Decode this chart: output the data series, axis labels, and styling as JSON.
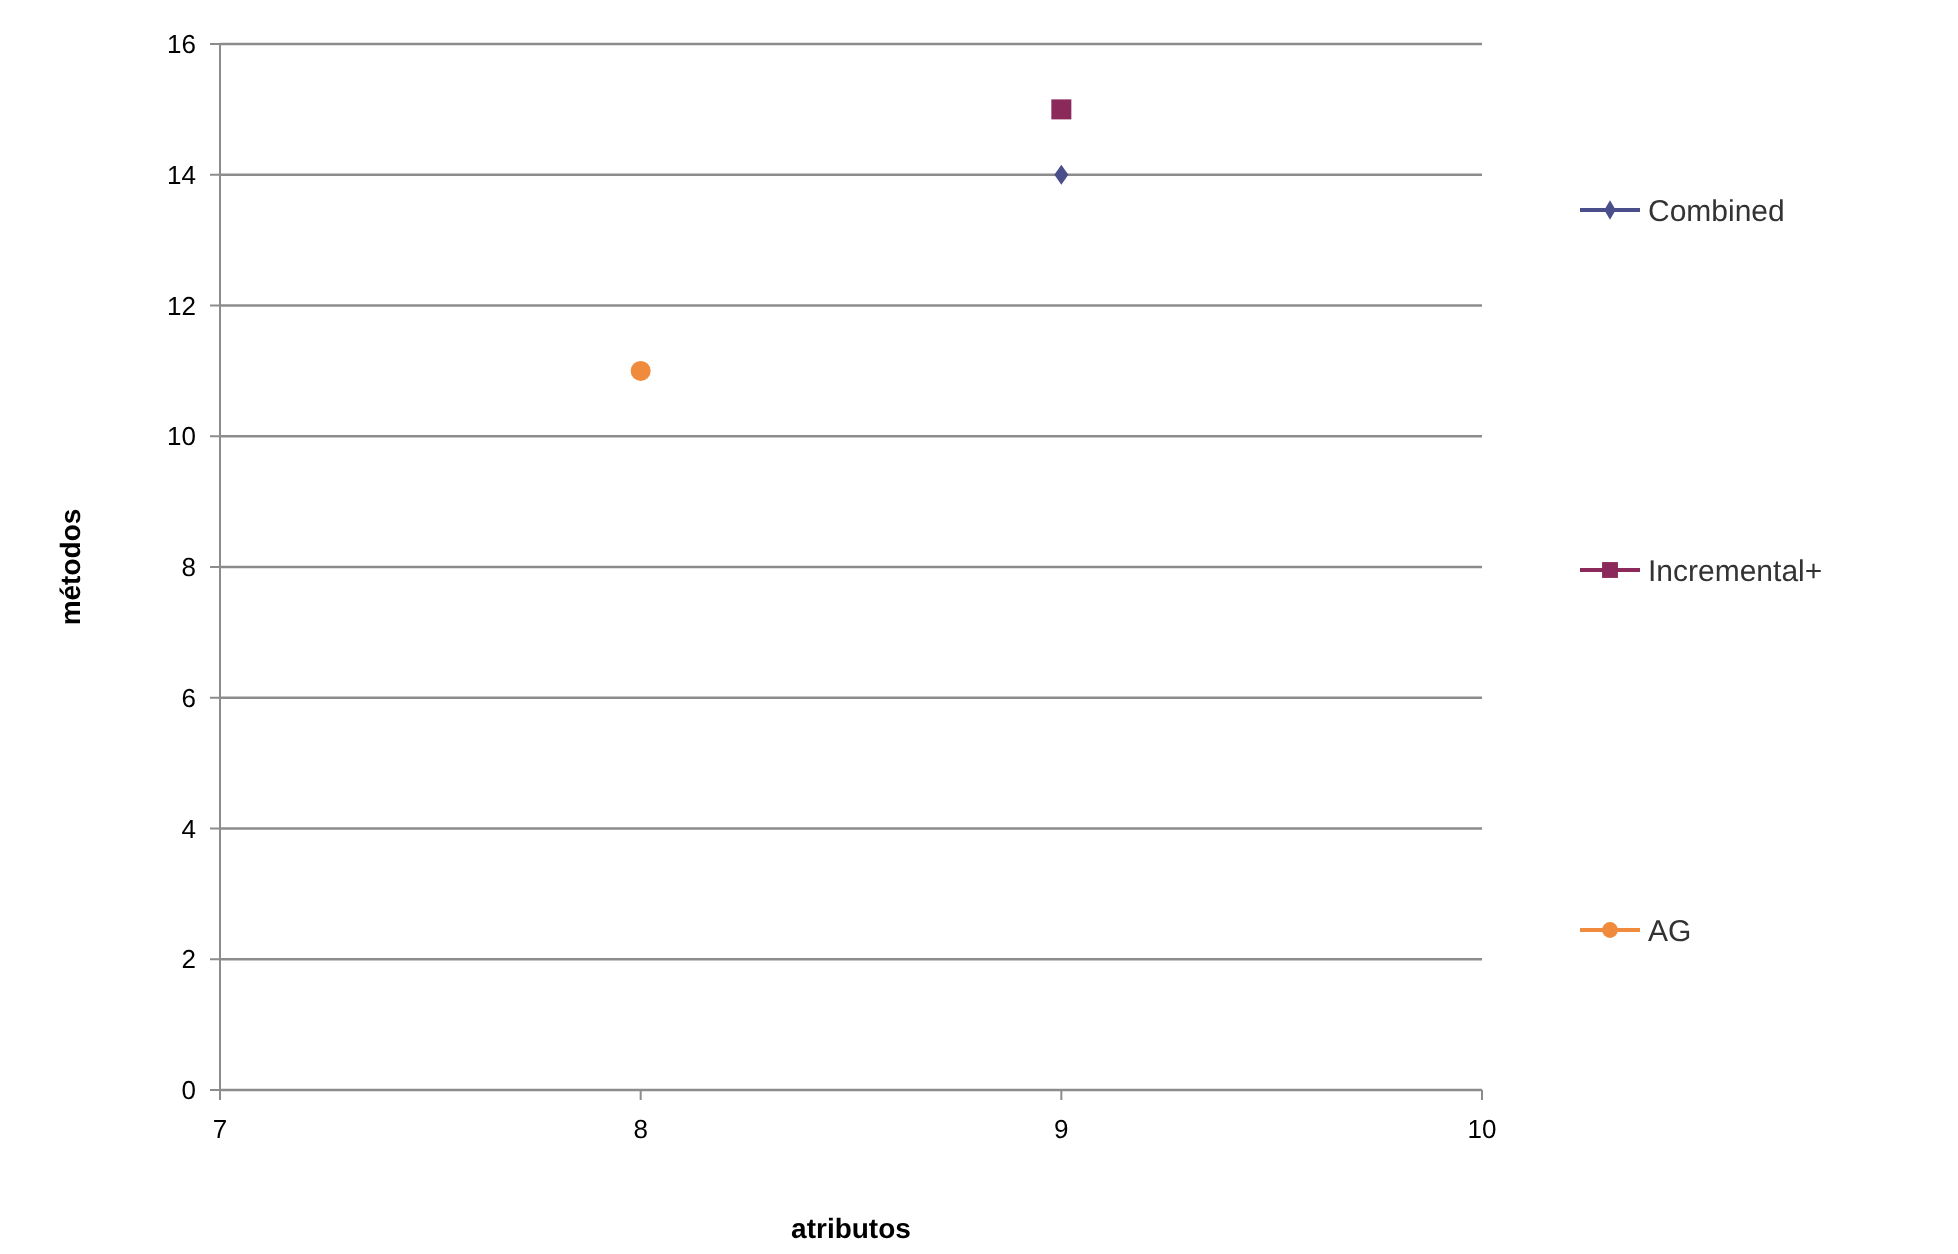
{
  "chart_data": {
    "type": "scatter",
    "xlabel": "atributos",
    "ylabel": "métodos",
    "xlim": [
      7,
      10
    ],
    "xticks": [
      7,
      8,
      9,
      10
    ],
    "ylim": [
      0,
      16
    ],
    "yticks": [
      0,
      2,
      4,
      6,
      8,
      10,
      12,
      14,
      16
    ],
    "grid": "y",
    "legend": "right",
    "x": [
      8,
      9
    ],
    "series": [
      {
        "name": "Combined",
        "color": "#4a4f8c",
        "marker": "diamond",
        "values": [
          null,
          14
        ]
      },
      {
        "name": "Incremental+",
        "color": "#8b2a5a",
        "marker": "square",
        "values": [
          null,
          15
        ]
      },
      {
        "name": "AG",
        "color": "#f08a3c",
        "marker": "circle",
        "values": [
          11,
          null
        ]
      }
    ]
  }
}
